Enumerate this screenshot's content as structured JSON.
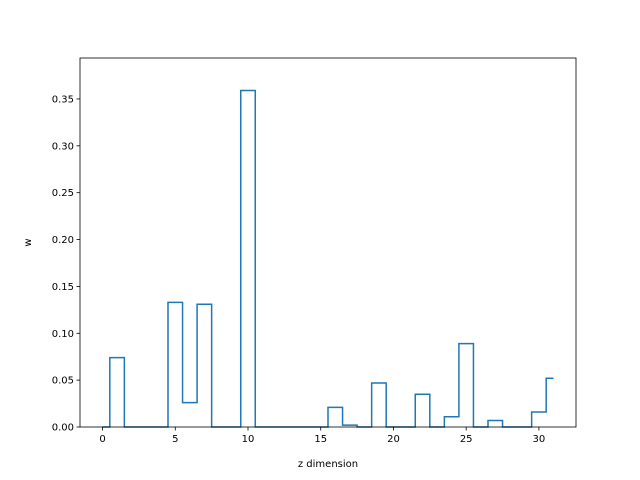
{
  "chart_data": {
    "type": "line",
    "style": "step",
    "title": "",
    "xlabel": "z dimension",
    "ylabel": "w",
    "xlim": [
      -1.55,
      32.55
    ],
    "ylim": [
      0,
      0.3937
    ],
    "xticks": [
      0,
      5,
      10,
      15,
      20,
      25,
      30
    ],
    "yticks": [
      0.0,
      0.05,
      0.1,
      0.15,
      0.2,
      0.25,
      0.3,
      0.35
    ],
    "grid": false,
    "legend": "none",
    "color": "#1f77b4",
    "series": [
      {
        "x": [
          0,
          1,
          2,
          3,
          4,
          5,
          6,
          7,
          8,
          9,
          10,
          11,
          12,
          13,
          14,
          15,
          16,
          17,
          18,
          19,
          20,
          21,
          22,
          23,
          24,
          25,
          26,
          27,
          28,
          29,
          30,
          31
        ],
        "values": [
          0.0,
          0.074,
          0.0,
          0.0,
          0.0,
          0.133,
          0.026,
          0.131,
          0.0,
          0.0,
          0.359,
          0.0,
          0.0,
          0.0,
          0.0,
          0.0,
          0.021,
          0.002,
          0.0,
          0.047,
          0.0,
          0.0,
          0.035,
          0.0,
          0.011,
          0.089,
          0.0,
          0.007,
          0.0,
          0.0,
          0.016,
          0.052
        ]
      }
    ]
  }
}
